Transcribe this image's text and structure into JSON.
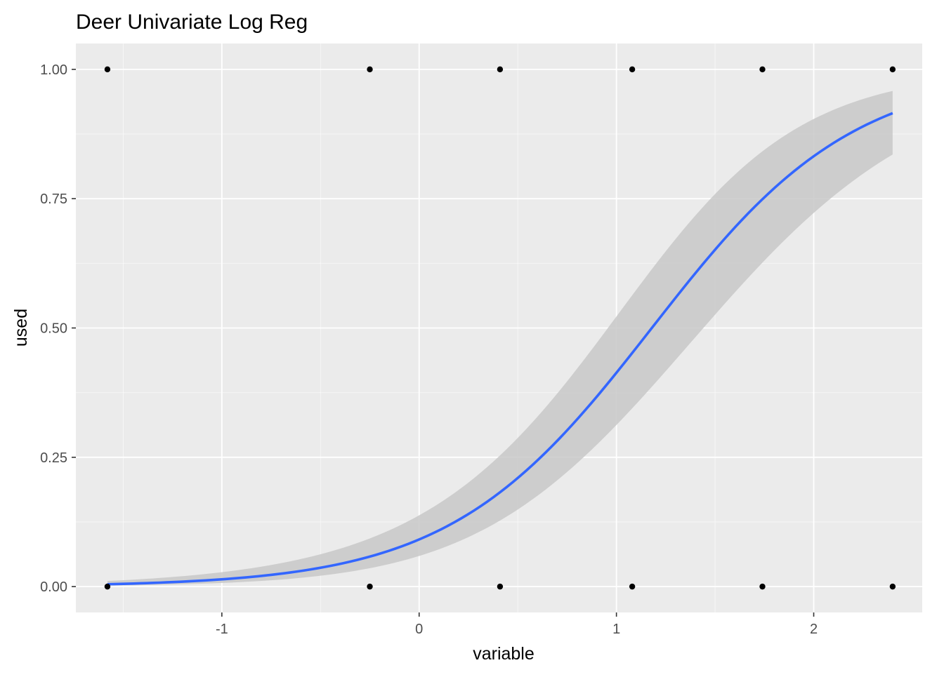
{
  "chart_data": {
    "type": "scatter",
    "title": "Deer Univariate Log Reg",
    "xlabel": "variable",
    "ylabel": "used",
    "xlim": [
      -1.74,
      2.55
    ],
    "ylim": [
      -0.05,
      1.05
    ],
    "x_ticks": [
      {
        "value": -1,
        "label": "-1"
      },
      {
        "value": 0,
        "label": "0"
      },
      {
        "value": 1,
        "label": "1"
      },
      {
        "value": 2,
        "label": "2"
      }
    ],
    "x_minor_ticks": [
      -1.5,
      -0.5,
      0.5,
      1.5
    ],
    "y_ticks": [
      {
        "value": 0,
        "label": "0.00"
      },
      {
        "value": 0.25,
        "label": "0.25"
      },
      {
        "value": 0.5,
        "label": "0.50"
      },
      {
        "value": 0.75,
        "label": "0.75"
      },
      {
        "value": 1,
        "label": "1.00"
      }
    ],
    "y_minor_ticks": [
      0.125,
      0.375,
      0.625,
      0.875
    ],
    "grid": true,
    "points": [
      {
        "x": -1.58,
        "y": 1
      },
      {
        "x": -0.25,
        "y": 1
      },
      {
        "x": 0.41,
        "y": 1
      },
      {
        "x": 1.08,
        "y": 1
      },
      {
        "x": 1.74,
        "y": 1
      },
      {
        "x": 2.4,
        "y": 1
      },
      {
        "x": -1.58,
        "y": 0
      },
      {
        "x": -0.25,
        "y": 0
      },
      {
        "x": 0.41,
        "y": 0
      },
      {
        "x": 1.08,
        "y": 0
      },
      {
        "x": 1.74,
        "y": 0
      },
      {
        "x": 2.4,
        "y": 0
      }
    ],
    "fit": {
      "method": "logistic",
      "intercept": -2.3,
      "slope": 1.95,
      "x_range": [
        -1.58,
        2.4
      ],
      "ci_band": true
    },
    "colors": {
      "panel_background": "#EBEBEB",
      "grid_major": "#FFFFFF",
      "fit_line": "#3366FF",
      "ci_band": "#C8C8C8",
      "points": "#000000"
    }
  }
}
